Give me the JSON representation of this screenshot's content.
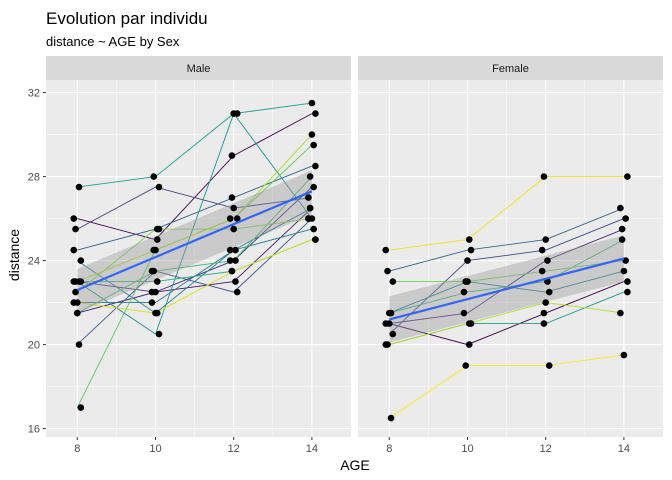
{
  "chart_data": {
    "type": "line",
    "title": "Evolution par individu",
    "subtitle": "distance ~ AGE by Sex",
    "xlabel": "AGE",
    "ylabel": "distance",
    "xlim": [
      7.2,
      15.0
    ],
    "ylim": [
      15.6,
      32.6
    ],
    "x_ticks": [
      8,
      10,
      12,
      14
    ],
    "y_ticks": [
      16,
      20,
      24,
      28,
      32
    ],
    "grid": true,
    "panels": [
      {
        "facet": "Male",
        "trend": {
          "x": [
            8,
            14
          ],
          "y": [
            22.6,
            27.3
          ],
          "ci_lower": [
            21.5,
            26.2
          ],
          "ci_upper": [
            23.6,
            28.3
          ]
        },
        "colors": [
          "#440154",
          "#48186a",
          "#472d7b",
          "#424086",
          "#3b528b",
          "#33638d",
          "#2c728e",
          "#26828e",
          "#21918c",
          "#1fa088",
          "#28ae80",
          "#3fbc73",
          "#5ec962",
          "#84d44b",
          "#addc30",
          "#d8e219"
        ],
        "series": [
          {
            "x": [
              8,
              10,
              12,
              14
            ],
            "y": [
              26.0,
              25.0,
              29.0,
              31.0
            ]
          },
          {
            "x": [
              8,
              10,
              12,
              14
            ],
            "y": [
              21.5,
              22.5,
              23.0,
              26.5
            ]
          },
          {
            "x": [
              8,
              10,
              12,
              14
            ],
            "y": [
              23.0,
              22.5,
              24.0,
              27.5
            ]
          },
          {
            "x": [
              8,
              10,
              12,
              14
            ],
            "y": [
              25.5,
              27.5,
              26.5,
              27.0
            ]
          },
          {
            "x": [
              8,
              10,
              12,
              14
            ],
            "y": [
              20.0,
              23.5,
              22.5,
              26.0
            ]
          },
          {
            "x": [
              8,
              10,
              12,
              14
            ],
            "y": [
              24.5,
              25.5,
              27.0,
              28.5
            ]
          },
          {
            "x": [
              8,
              10,
              12,
              14
            ],
            "y": [
              22.0,
              22.0,
              24.5,
              26.5
            ]
          },
          {
            "x": [
              8,
              10,
              12,
              14
            ],
            "y": [
              24.0,
              21.5,
              24.5,
              25.5
            ]
          },
          {
            "x": [
              8,
              10,
              12,
              14
            ],
            "y": [
              23.0,
              20.5,
              31.0,
              26.0
            ]
          },
          {
            "x": [
              8,
              10,
              12,
              14
            ],
            "y": [
              27.5,
              28.0,
              31.0,
              31.5
            ]
          },
          {
            "x": [
              8,
              10,
              12,
              14
            ],
            "y": [
              23.0,
              23.0,
              23.5,
              25.0
            ]
          },
          {
            "x": [
              8,
              10,
              12,
              14
            ],
            "y": [
              21.5,
              23.5,
              24.0,
              28.0
            ]
          },
          {
            "x": [
              8,
              10,
              12,
              14
            ],
            "y": [
              17.0,
              24.5,
              26.0,
              29.5
            ]
          },
          {
            "x": [
              8,
              10,
              12,
              14
            ],
            "y": [
              22.5,
              25.5,
              25.5,
              26.0
            ]
          },
          {
            "x": [
              8,
              10,
              12,
              14
            ],
            "y": [
              23.0,
              24.5,
              26.0,
              30.0
            ]
          },
          {
            "x": [
              8,
              10,
              12,
              14
            ],
            "y": [
              22.0,
              21.5,
              23.5,
              25.0
            ]
          }
        ]
      },
      {
        "facet": "Female",
        "trend": {
          "x": [
            8,
            14
          ],
          "y": [
            21.2,
            24.1
          ],
          "ci_lower": [
            20.1,
            23.0
          ],
          "ci_upper": [
            22.3,
            25.2
          ]
        },
        "colors": [
          "#440154",
          "#482878",
          "#3e4a89",
          "#31688e",
          "#26828e",
          "#1f9e89",
          "#35b779",
          "#6ece58",
          "#b5de2b",
          "#fde725",
          "#f0e020"
        ],
        "series": [
          {
            "x": [
              8,
              10,
              12,
              14
            ],
            "y": [
              21.0,
              20.0,
              21.5,
              23.0
            ]
          },
          {
            "x": [
              8,
              10,
              12,
              14
            ],
            "y": [
              21.0,
              21.5,
              24.0,
              25.5
            ]
          },
          {
            "x": [
              8,
              10,
              12,
              14
            ],
            "y": [
              20.5,
              24.0,
              24.5,
              26.0
            ]
          },
          {
            "x": [
              8,
              10,
              12,
              14
            ],
            "y": [
              23.5,
              24.5,
              25.0,
              26.5
            ]
          },
          {
            "x": [
              8,
              10,
              12,
              14
            ],
            "y": [
              21.5,
              23.0,
              22.5,
              23.5
            ]
          },
          {
            "x": [
              8,
              10,
              12,
              14
            ],
            "y": [
              20.0,
              21.0,
              21.0,
              22.5
            ]
          },
          {
            "x": [
              8,
              10,
              12,
              14
            ],
            "y": [
              21.5,
              22.5,
              23.0,
              25.0
            ]
          },
          {
            "x": [
              8,
              10,
              12,
              14
            ],
            "y": [
              23.0,
              23.0,
              23.5,
              24.0
            ]
          },
          {
            "x": [
              8,
              10,
              12,
              14
            ],
            "y": [
              20.0,
              21.0,
              22.0,
              21.5
            ]
          },
          {
            "x": [
              8,
              10,
              12,
              14
            ],
            "y": [
              16.5,
              19.0,
              19.0,
              19.5
            ]
          },
          {
            "x": [
              8,
              10,
              12,
              14
            ],
            "y": [
              24.5,
              25.0,
              28.0,
              28.0
            ]
          }
        ]
      }
    ]
  },
  "colors": {
    "panel_background": "#ebebeb",
    "grid_major": "#ffffff",
    "strip_background": "#d9d9d9",
    "trend_line": "#3366ff",
    "ribbon": "#999999",
    "points": "#000000"
  }
}
